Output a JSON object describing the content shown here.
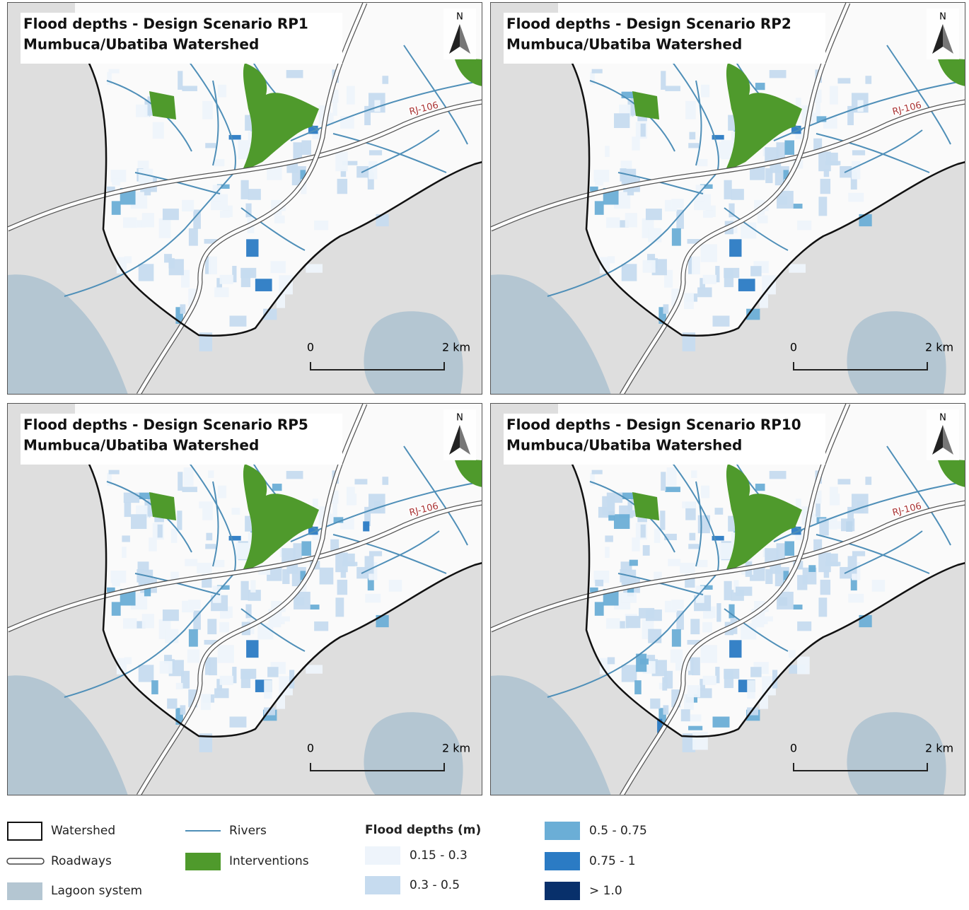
{
  "panels": [
    {
      "title": "Flood depths - Design Scenario RP1",
      "subtitle": "Mumbuca/Ubatiba Watershed",
      "north": "N",
      "road_label": "RJ-106",
      "scale_start": "0",
      "scale_end": "2 km"
    },
    {
      "title": "Flood depths - Design Scenario RP2",
      "subtitle": "Mumbuca/Ubatiba Watershed",
      "north": "N",
      "road_label": "RJ-106",
      "scale_start": "0",
      "scale_end": "2 km"
    },
    {
      "title": "Flood depths - Design Scenario RP5",
      "subtitle": "Mumbuca/Ubatiba Watershed",
      "north": "N",
      "road_label": "RJ-106",
      "scale_start": "0",
      "scale_end": "2 km"
    },
    {
      "title": "Flood depths - Design Scenario RP10",
      "subtitle": "Mumbuca/Ubatiba Watershed",
      "north": "N",
      "road_label": "RJ-106",
      "scale_start": "0",
      "scale_end": "2 km"
    }
  ],
  "legend": {
    "items": [
      {
        "label": "Watershed"
      },
      {
        "label": "Roadways"
      },
      {
        "label": "Lagoon system"
      },
      {
        "label": "Rivers"
      },
      {
        "label": "Interventions"
      }
    ],
    "flood_title": "Flood depths (m)",
    "flood_classes": [
      {
        "label": "0.15 - 0.3",
        "color": "#eef4fb"
      },
      {
        "label": "0.3 - 0.5",
        "color": "#c6dbef"
      },
      {
        "label": "0.5 - 0.75",
        "color": "#6baed6"
      },
      {
        "label": "0.75 - 1",
        "color": "#2b7bc4"
      },
      {
        "label": "> 1.0",
        "color": "#08306b"
      }
    ]
  }
}
